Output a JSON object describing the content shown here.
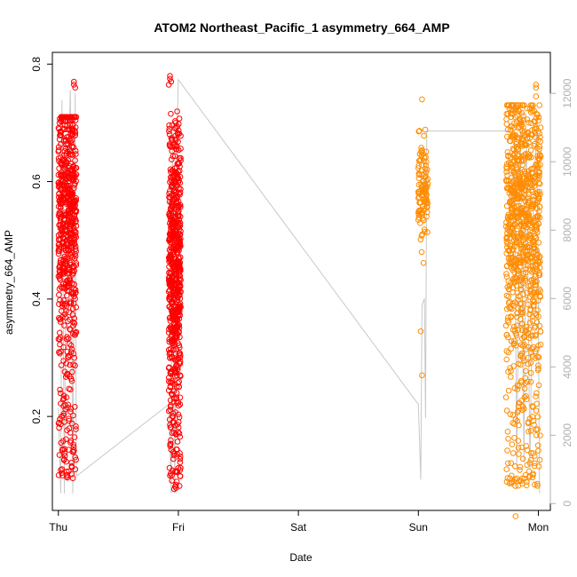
{
  "chart_data": {
    "type": "scatter",
    "title": "ATOM2 Northeast_Pacific_1 asymmetry_664_AMP",
    "xlabel": "Date",
    "ylabel": "asymmetry_664_AMP",
    "x_ticks": [
      "Thu",
      "Fri",
      "Sat",
      "Sun",
      "Mon"
    ],
    "y_ticks": [
      "0.2",
      "0.4",
      "0.6",
      "0.8"
    ],
    "y2_ticks": [
      "0",
      "2000",
      "4000",
      "6000",
      "8000",
      "10000",
      "12000"
    ],
    "xlim": [
      -0.05,
      4.1
    ],
    "ylim": [
      0.04,
      0.82
    ],
    "y2lim": [
      -200,
      13200
    ],
    "grid": false,
    "colors": {
      "series_1": "#ff0000",
      "series_2": "#ff8c00",
      "trace": "#c8c8c8"
    },
    "series": [
      {
        "color": "#ff0000",
        "clusters": [
          {
            "x_range": [
              0.0,
              0.15
            ],
            "y_range": [
              0.09,
              0.71
            ],
            "center": 0.55,
            "count": 650
          },
          {
            "x_range": [
              0.92,
              1.02
            ],
            "y_range": [
              0.075,
              0.72
            ],
            "center": 0.45,
            "count": 650
          }
        ],
        "outliers": [
          [
            0.13,
            0.77
          ],
          [
            0.14,
            0.76
          ],
          [
            0.13,
            0.765
          ],
          [
            0.93,
            0.78
          ],
          [
            0.93,
            0.775
          ],
          [
            0.94,
            0.77
          ],
          [
            0.92,
            0.765
          ]
        ]
      },
      {
        "color": "#ff8c00",
        "clusters": [
          {
            "x_range": [
              3.0,
              3.08
            ],
            "y_range": [
              0.46,
              0.69
            ],
            "center": 0.58,
            "count": 110
          },
          {
            "x_range": [
              3.73,
              4.02
            ],
            "y_range": [
              0.08,
              0.73
            ],
            "center": 0.55,
            "count": 900
          }
        ],
        "outliers": [
          [
            3.02,
            0.345
          ],
          [
            3.03,
            0.27
          ],
          [
            3.05,
            0.64
          ],
          [
            3.03,
            0.74
          ],
          [
            3.81,
            0.03
          ],
          [
            3.98,
            0.765
          ],
          [
            3.98,
            0.76
          ],
          [
            3.98,
            0.745
          ]
        ]
      }
    ],
    "trace": {
      "x": [
        0.0,
        0.02,
        0.03,
        0.05,
        0.07,
        0.08,
        0.1,
        0.12,
        0.14,
        0.15,
        0.92,
        0.94,
        0.95,
        0.97,
        0.99,
        1.0,
        3.0,
        3.02,
        3.03,
        3.05,
        3.06,
        3.07,
        3.8,
        3.82,
        3.85,
        3.88,
        3.9,
        3.93,
        3.96,
        3.99,
        4.01
      ],
      "y": [
        2800,
        300,
        11800,
        300,
        10500,
        9500,
        12100,
        300,
        12000,
        800,
        2900,
        300,
        10800,
        300,
        11000,
        12400,
        2900,
        700,
        5800,
        6000,
        2500,
        10900,
        10900,
        1100,
        11000,
        1200,
        10800,
        1000,
        9000,
        11200,
        300
      ]
    }
  }
}
